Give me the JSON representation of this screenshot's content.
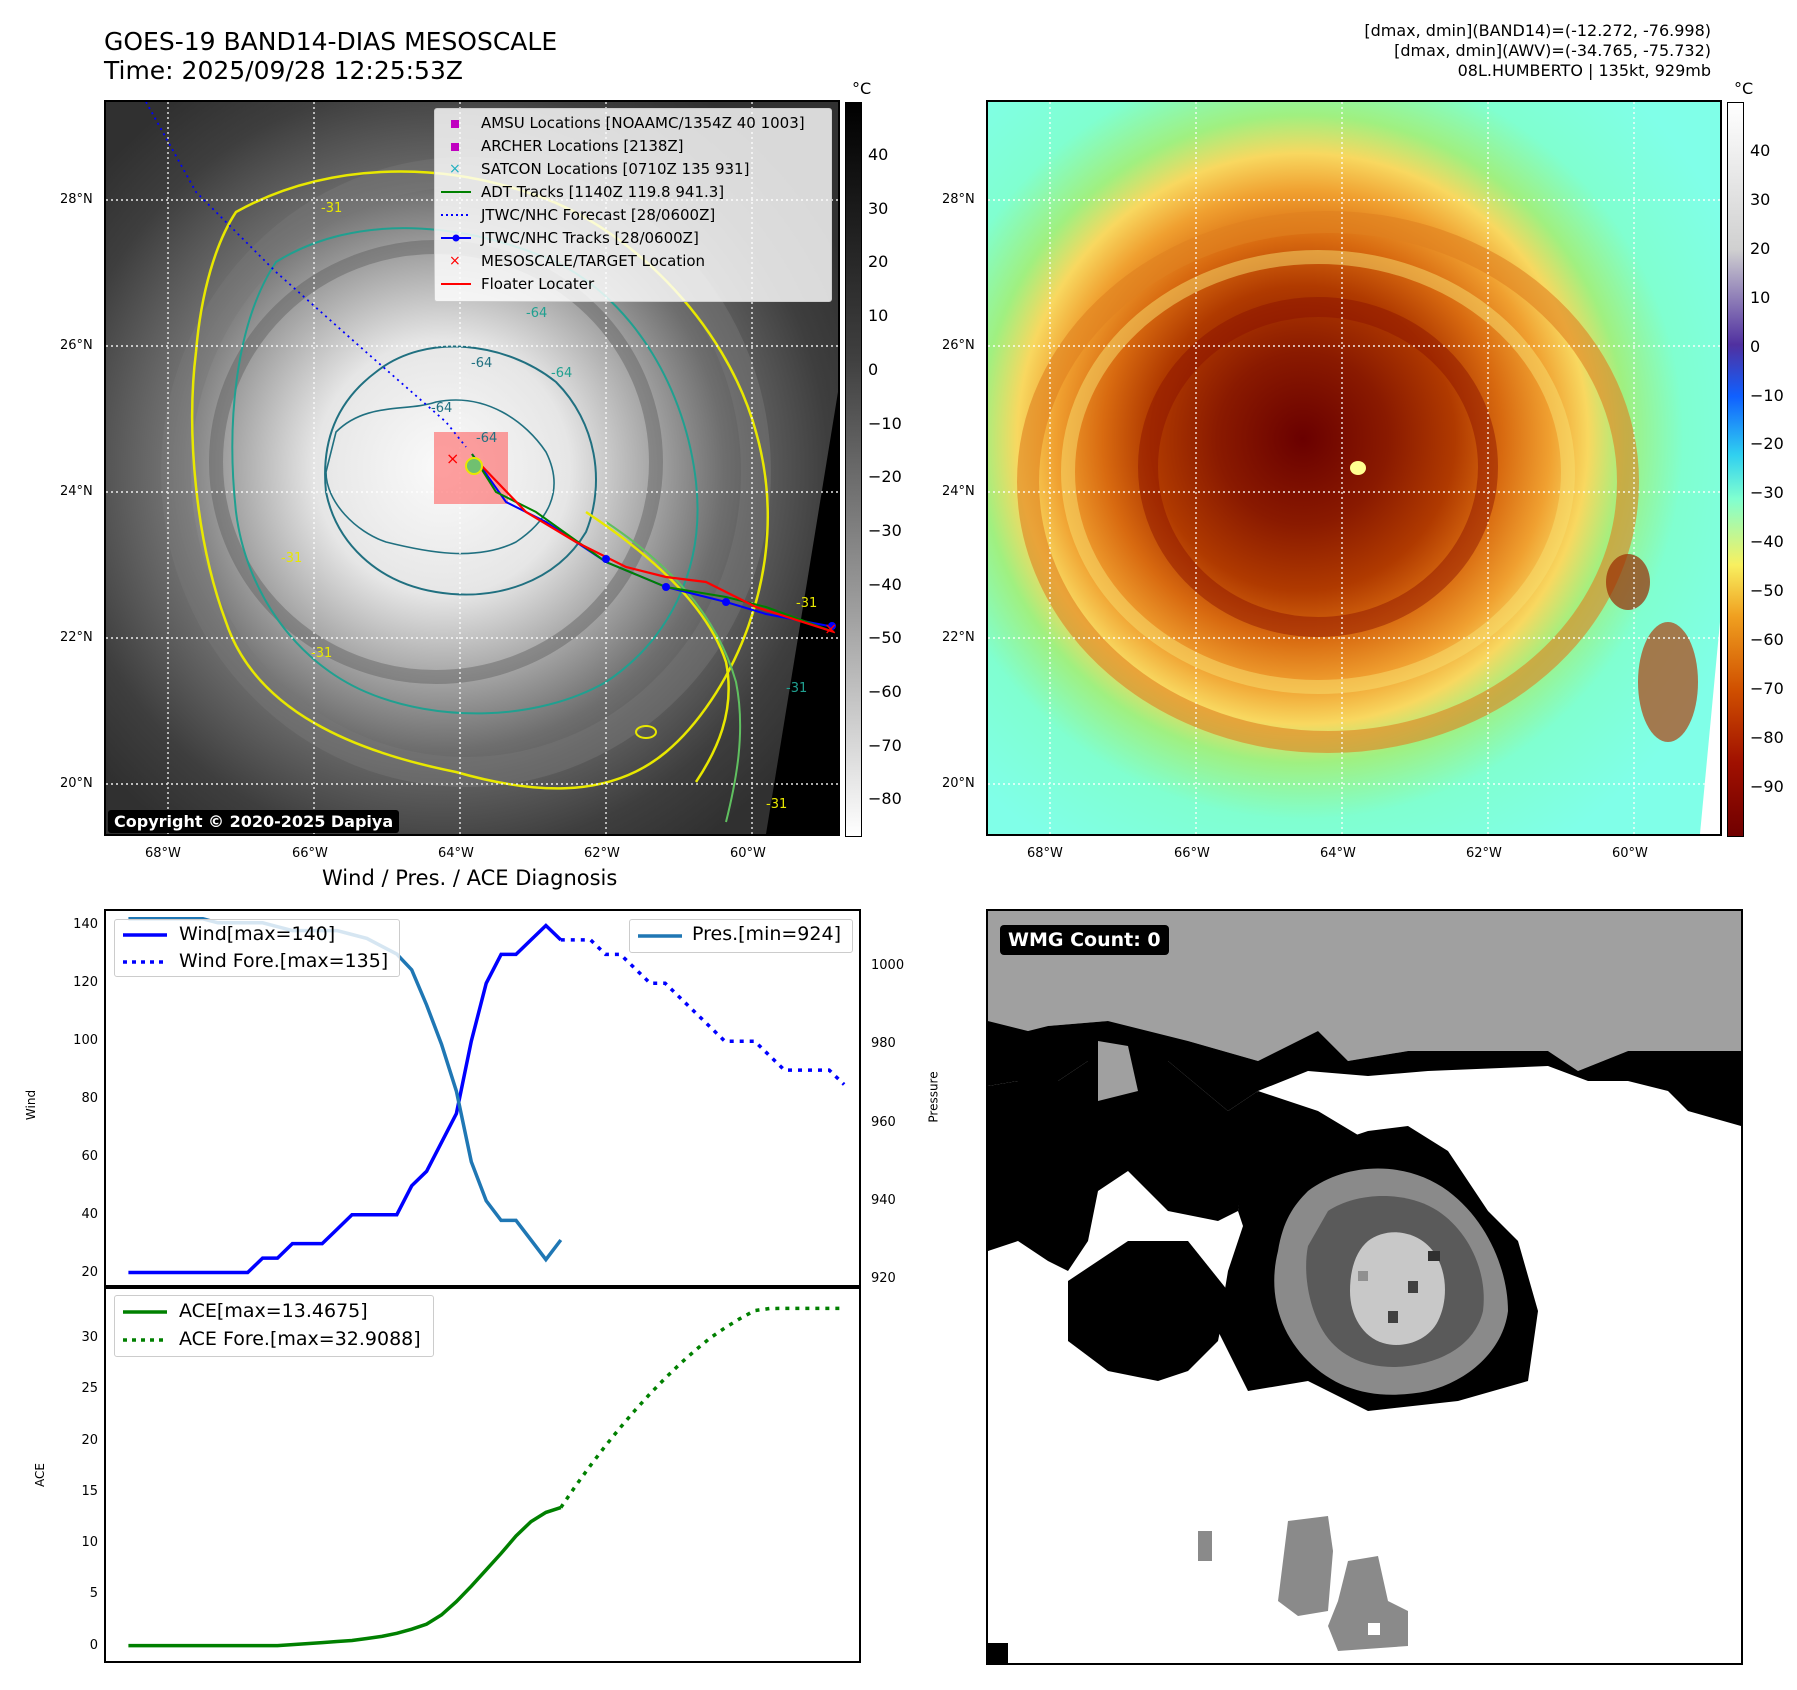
{
  "header": {
    "title_line1": "GOES-19 BAND14-DIAS MESOSCALE",
    "title_line2": "Time: 2025/09/28 12:25:53Z",
    "info_line1": "[dmax, dmin](BAND14)=(-12.272, -76.998)",
    "info_line2": "[dmax, dmin](AWV)=(-34.765, -75.732)",
    "info_line3": "08L.HUMBERTO | 135kt, 929mb"
  },
  "maps": {
    "lon_ticks": [
      "68°W",
      "66°W",
      "64°W",
      "62°W",
      "60°W"
    ],
    "lat_ticks": [
      "28°N",
      "26°N",
      "24°N",
      "22°N",
      "20°N"
    ],
    "left_colorbar": {
      "unit": "°C",
      "ticks": [
        "40",
        "30",
        "20",
        "10",
        "0",
        "−10",
        "−20",
        "−30",
        "−40",
        "−50",
        "−60",
        "−70",
        "−80"
      ]
    },
    "right_colorbar": {
      "unit": "°C",
      "ticks": [
        "40",
        "30",
        "20",
        "10",
        "0",
        "−10",
        "−20",
        "−30",
        "−40",
        "−50",
        "−60",
        "−70",
        "−80",
        "−90"
      ]
    },
    "copyright": "Copyright © 2020-2025 Dapiya",
    "contour_labels": [
      "-31",
      "-31",
      "-31",
      "-31",
      "-31",
      "-31",
      "-64",
      "-64",
      "-64",
      "-64",
      "-64"
    ],
    "legend": [
      {
        "label": "AMSU Locations [NOAAMC/1354Z 40 1003]",
        "color": "#c000c0",
        "marker": "square"
      },
      {
        "label": "ARCHER Locations [2138Z]",
        "color": "#c000c0",
        "marker": "square"
      },
      {
        "label": "SATCON Locations [0710Z 135 931]",
        "color": "#20b0c0",
        "marker": "x"
      },
      {
        "label": "ADT Tracks [1140Z 119.8 941.3]",
        "color": "#008000",
        "marker": "line"
      },
      {
        "label": "JTWC/NHC Forecast [28/0600Z]",
        "color": "#0000ff",
        "marker": "dotted"
      },
      {
        "label": "JTWC/NHC Tracks [28/0600Z]",
        "color": "#0000ff",
        "marker": "line-dot"
      },
      {
        "label": "MESOSCALE/TARGET Location",
        "color": "#ff0000",
        "marker": "x"
      },
      {
        "label": "Floater Locater",
        "color": "#ff0000",
        "marker": "line"
      }
    ],
    "wmg_count": "WMG Count: 0"
  },
  "chart_data": [
    {
      "type": "line",
      "title": "Wind / Pres. / ACE Diagnosis",
      "ylabel": "Wind",
      "ylabel_right": "Pressure",
      "ylim": [
        15,
        145
      ],
      "ylim_right": [
        918,
        1014
      ],
      "yticks": [
        20,
        40,
        60,
        80,
        100,
        120,
        140
      ],
      "yticks_right": [
        920,
        940,
        960,
        980,
        1000
      ],
      "series": [
        {
          "name": "Wind[max=140]",
          "color": "#0000ff",
          "style": "solid",
          "axis": "left",
          "x": [
            0,
            1,
            2,
            3,
            4,
            5,
            6,
            7,
            8,
            9,
            10,
            11,
            12,
            13,
            14,
            15,
            16,
            17,
            18,
            19,
            20,
            21,
            22,
            23,
            24,
            25,
            26,
            27,
            28,
            29,
            30
          ],
          "values": [
            20,
            20,
            20,
            20,
            20,
            20,
            20,
            20,
            20,
            25,
            25,
            30,
            30,
            30,
            35,
            40,
            40,
            40,
            40,
            50,
            55,
            65,
            75,
            100,
            120,
            130,
            130,
            135,
            140,
            135,
            null
          ]
        },
        {
          "name": "Wind Fore.[max=135]",
          "color": "#0000ff",
          "style": "dotted",
          "axis": "left",
          "x": [
            29,
            30,
            31,
            32,
            33,
            34,
            35,
            36,
            37,
            38,
            39,
            40,
            41,
            42,
            43,
            44,
            45,
            46,
            47,
            48
          ],
          "values": [
            135,
            135,
            135,
            130,
            130,
            125,
            120,
            120,
            115,
            110,
            105,
            100,
            100,
            100,
            95,
            90,
            90,
            90,
            90,
            85
          ]
        },
        {
          "name": "Pres.[min=924]",
          "color": "#1f77b4",
          "style": "solid",
          "axis": "right",
          "x": [
            0,
            1,
            2,
            3,
            4,
            5,
            6,
            7,
            8,
            9,
            10,
            11,
            12,
            13,
            14,
            15,
            16,
            17,
            18,
            19,
            20,
            21,
            22,
            23,
            24,
            25,
            26,
            27,
            28,
            29
          ],
          "values": [
            1012,
            1012,
            1012,
            1012,
            1012,
            1012,
            1011,
            1011,
            1011,
            1011,
            1010,
            1009,
            1009,
            1009,
            1009,
            1008,
            1007,
            1005,
            1003,
            999,
            990,
            980,
            968,
            950,
            940,
            935,
            935,
            930,
            925,
            930
          ]
        }
      ],
      "xlim": [
        -1.5,
        49
      ]
    },
    {
      "type": "line",
      "ylabel": "ACE",
      "ylim": [
        -1.5,
        35
      ],
      "yticks": [
        0,
        5,
        10,
        15,
        20,
        25,
        30
      ],
      "series": [
        {
          "name": "ACE[max=13.4675]",
          "color": "#008000",
          "style": "solid",
          "x": [
            0,
            1,
            2,
            3,
            4,
            5,
            6,
            7,
            8,
            9,
            10,
            11,
            12,
            13,
            14,
            15,
            16,
            17,
            18,
            19,
            20,
            21,
            22,
            23,
            24,
            25,
            26,
            27,
            28,
            29
          ],
          "values": [
            0,
            0,
            0,
            0,
            0,
            0,
            0,
            0,
            0,
            0,
            0,
            0.1,
            0.2,
            0.3,
            0.4,
            0.5,
            0.7,
            0.9,
            1.2,
            1.6,
            2.1,
            3.0,
            4.3,
            5.8,
            7.4,
            9.0,
            10.7,
            12.1,
            13.0,
            13.4675
          ]
        },
        {
          "name": "ACE Fore.[max=32.9088]",
          "color": "#008000",
          "style": "dotted",
          "x": [
            29,
            30,
            31,
            32,
            33,
            34,
            35,
            36,
            37,
            38,
            39,
            40,
            41,
            42,
            43,
            44,
            45,
            46,
            47,
            48
          ],
          "values": [
            13.4675,
            15.6,
            17.6,
            19.5,
            21.3,
            23.0,
            24.6,
            26.1,
            27.5,
            28.8,
            30.0,
            31.0,
            31.9,
            32.7,
            32.9,
            32.9088,
            32.9088,
            32.9088,
            32.9088,
            32.9088
          ]
        }
      ],
      "xlim": [
        -1.5,
        49
      ]
    }
  ]
}
